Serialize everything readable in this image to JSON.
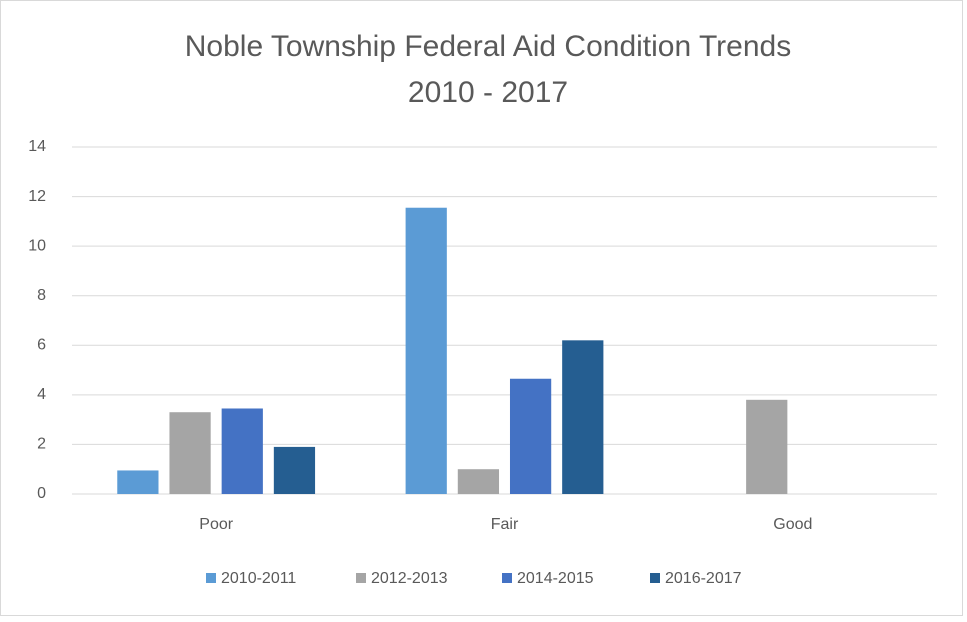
{
  "chart_data": {
    "type": "bar",
    "title": "Noble Township Federal Aid Condition Trends",
    "subtitle": "2010 - 2017",
    "categories": [
      "Poor",
      "Fair",
      "Good"
    ],
    "series": [
      {
        "name": "2010-2011",
        "color": "#5b9bd5",
        "values": [
          0.95,
          11.55,
          0
        ]
      },
      {
        "name": "2012-2013",
        "color": "#a5a5a5",
        "values": [
          3.3,
          1.0,
          3.8
        ]
      },
      {
        "name": "2014-2015",
        "color": "#4472c4",
        "values": [
          3.45,
          4.65,
          0
        ]
      },
      {
        "name": "2016-2017",
        "color": "#255e91",
        "values": [
          1.9,
          6.2,
          0
        ]
      }
    ],
    "ylim": [
      0,
      14
    ],
    "yticks": [
      0,
      2,
      4,
      6,
      8,
      10,
      12,
      14
    ],
    "grid": true,
    "legend": "bottom"
  }
}
